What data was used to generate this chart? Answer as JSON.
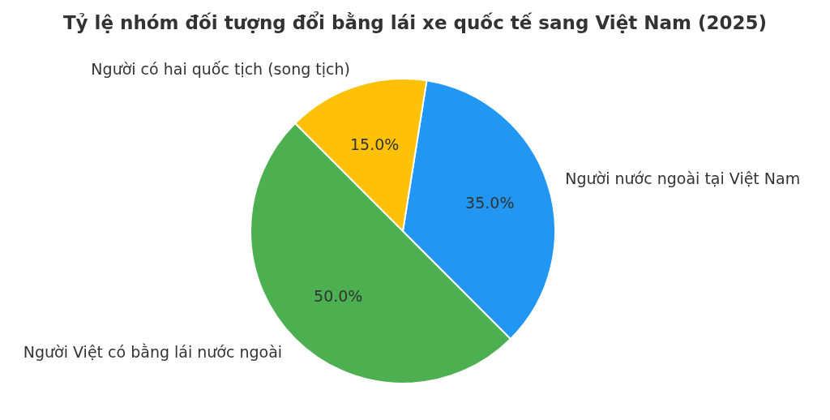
{
  "chart_data": {
    "type": "pie",
    "title": "Tỷ lệ nhóm đối tượng đổi bằng lái xe quốc tế sang Việt Nam (2025)",
    "categories": [
      "Người Việt có bằng lái nước ngoài",
      "Người nước ngoài tại Việt Nam",
      "Người có hai quốc tịch (song tịch)"
    ],
    "values": [
      50,
      35,
      15
    ],
    "colors": [
      "#4caf50",
      "#2196f3",
      "#ffc107"
    ],
    "value_labels": [
      "50.0%",
      "35.0%",
      "15.0%"
    ]
  }
}
